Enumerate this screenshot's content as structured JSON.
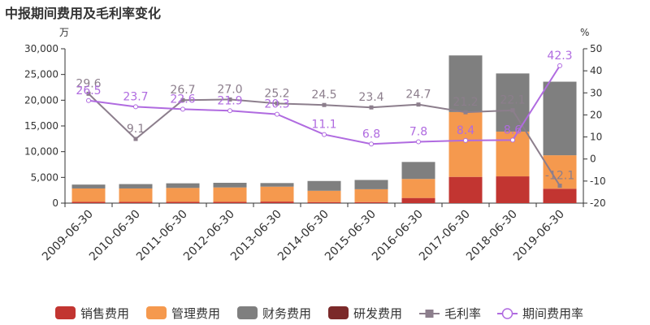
{
  "chart_data": {
    "type": "bar",
    "title": "中报期间费用及毛利率变化",
    "y_left_unit": "万",
    "y_right_unit": "%",
    "categories": [
      "2009-06-30",
      "2010-06-30",
      "2011-06-30",
      "2012-06-30",
      "2013-06-30",
      "2014-06-30",
      "2015-06-30",
      "2016-06-30",
      "2017-06-30",
      "2018-06-30",
      "2019-06-30"
    ],
    "y_left": {
      "min": 0,
      "max": 30000,
      "ticks": [
        "0",
        "5,000",
        "10,000",
        "15,000",
        "20,000",
        "25,000",
        "30,000"
      ]
    },
    "y_right": {
      "min": -20,
      "max": 50,
      "ticks": [
        "-20",
        "-10",
        "0",
        "10",
        "20",
        "30",
        "40",
        "50"
      ]
    },
    "stacked_series": [
      {
        "name": "销售费用",
        "color": "#c23531",
        "values": [
          250,
          250,
          250,
          250,
          300,
          200,
          200,
          1000,
          5100,
          5200,
          2800
        ]
      },
      {
        "name": "管理费用",
        "color": "#f5994e",
        "values": [
          2600,
          2600,
          2700,
          2800,
          2900,
          2200,
          2500,
          3700,
          12600,
          8700,
          6500
        ]
      },
      {
        "name": "财务费用",
        "color": "#7f7f7f",
        "values": [
          750,
          850,
          900,
          900,
          700,
          1900,
          1800,
          3300,
          11000,
          11300,
          14300
        ]
      },
      {
        "name": "研发费用",
        "color": "#7b2a2a",
        "values": [
          0,
          0,
          0,
          0,
          0,
          0,
          0,
          0,
          0,
          0,
          0
        ]
      }
    ],
    "line_series": [
      {
        "name": "毛利率",
        "color": "#8c7e8c",
        "values": [
          29.6,
          9.1,
          26.7,
          27.0,
          25.2,
          24.5,
          23.4,
          24.7,
          21.2,
          22.1,
          -12.1
        ]
      },
      {
        "name": "期间费用率",
        "color": "#b06be0",
        "values": [
          26.5,
          23.7,
          22.6,
          21.9,
          20.3,
          11.1,
          6.8,
          7.8,
          8.4,
          8.6,
          42.3
        ]
      }
    ],
    "legend_position": "bottom"
  }
}
